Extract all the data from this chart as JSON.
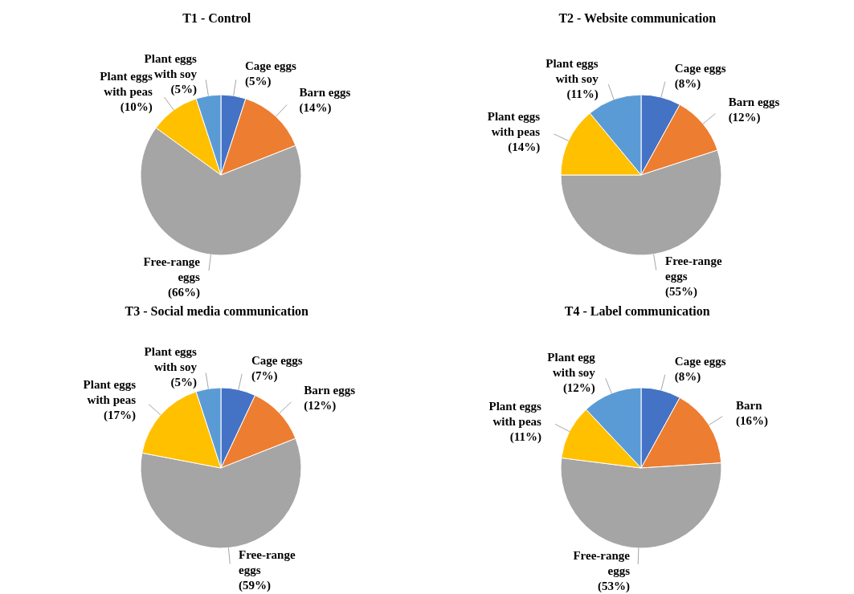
{
  "chart_data": [
    {
      "type": "pie",
      "title": "T1 - Control",
      "categories": [
        "Cage eggs",
        "Barn eggs",
        "Free-range eggs",
        "Plant eggs with peas",
        "Plant eggs with soy"
      ],
      "values": [
        5,
        14,
        66,
        10,
        5
      ],
      "value_labels": [
        "(5%)",
        "(14%)",
        "(66%)",
        "(10%)",
        "(5%)"
      ],
      "colors": [
        "#4472c4",
        "#ed7d31",
        "#a5a5a5",
        "#ffc000",
        "#5b9bd5"
      ],
      "legend": false
    },
    {
      "type": "pie",
      "title": "T2 - Website communication",
      "categories": [
        "Cage eggs",
        "Barn eggs",
        "Free-range eggs",
        "Plant eggs with peas",
        "Plant eggs with soy"
      ],
      "values": [
        8,
        12,
        55,
        14,
        11
      ],
      "value_labels": [
        "(8%)",
        "(12%)",
        "(55%)",
        "(14%)",
        "(11%)"
      ],
      "colors": [
        "#4472c4",
        "#ed7d31",
        "#a5a5a5",
        "#ffc000",
        "#5b9bd5"
      ],
      "legend": false
    },
    {
      "type": "pie",
      "title": "T3 - Social media communication",
      "categories": [
        "Cage eggs",
        "Barn eggs",
        "Free-range eggs",
        "Plant eggs with peas",
        "Plant eggs with soy"
      ],
      "values": [
        7,
        12,
        59,
        17,
        5
      ],
      "value_labels": [
        "(7%)",
        "(12%)",
        "(59%)",
        "(17%)",
        "(5%)"
      ],
      "colors": [
        "#4472c4",
        "#ed7d31",
        "#a5a5a5",
        "#ffc000",
        "#5b9bd5"
      ],
      "legend": false
    },
    {
      "type": "pie",
      "title": "T4 - Label communication",
      "categories": [
        "Cage eggs",
        "Barn",
        "Free-range eggs",
        "Plant eggs with peas",
        "Plant egg with soy"
      ],
      "values": [
        8,
        16,
        53,
        11,
        12
      ],
      "value_labels": [
        "(8%)",
        "(16%)",
        "(53%)",
        "(11%)",
        "(12%)"
      ],
      "colors": [
        "#4472c4",
        "#ed7d31",
        "#a5a5a5",
        "#ffc000",
        "#5b9bd5"
      ],
      "legend": false
    }
  ]
}
